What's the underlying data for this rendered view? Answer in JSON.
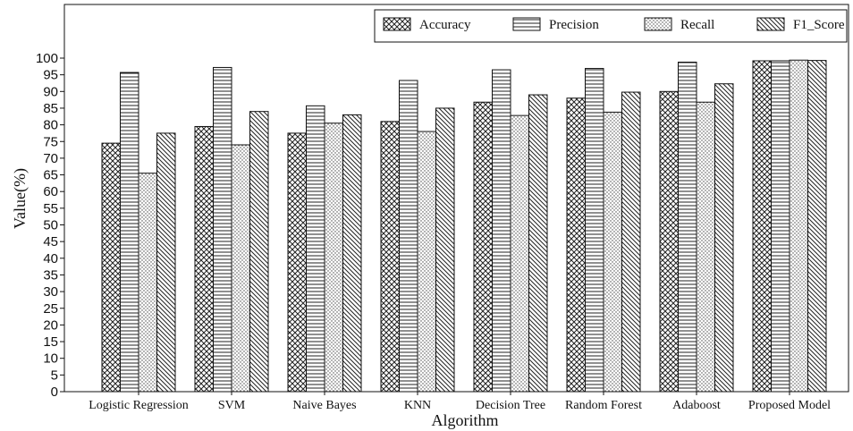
{
  "chart_data": {
    "type": "bar",
    "title": "",
    "xlabel": "Algorithm",
    "ylabel": "Value(%)",
    "ylim": [
      0,
      100
    ],
    "yticks": [
      0,
      5,
      10,
      15,
      20,
      25,
      30,
      35,
      40,
      45,
      50,
      55,
      60,
      65,
      70,
      75,
      80,
      85,
      90,
      95,
      100
    ],
    "grid": false,
    "legend_position": "top-right",
    "categories": [
      "Logistic Regression",
      "SVM",
      "Naive Bayes",
      "KNN",
      "Decision Tree",
      "Random Forest",
      "Adaboost",
      "Proposed Model"
    ],
    "series": [
      {
        "name": "Accuracy",
        "pattern": "crosshatch",
        "values": [
          74.5,
          79.5,
          77.5,
          81,
          86.8,
          88,
          90,
          99.2
        ]
      },
      {
        "name": "Precision",
        "pattern": "horizontal",
        "values": [
          95.7,
          97.2,
          85.7,
          93.3,
          96.5,
          96.9,
          98.8,
          99.2
        ]
      },
      {
        "name": "Recall",
        "pattern": "dots",
        "values": [
          65.5,
          74,
          80.5,
          78,
          82.8,
          83.8,
          86.8,
          99.4
        ]
      },
      {
        "name": "F1_Score",
        "pattern": "diagonal",
        "values": [
          77.5,
          84,
          83,
          85,
          89,
          89.8,
          92.3,
          99.3
        ]
      }
    ]
  }
}
